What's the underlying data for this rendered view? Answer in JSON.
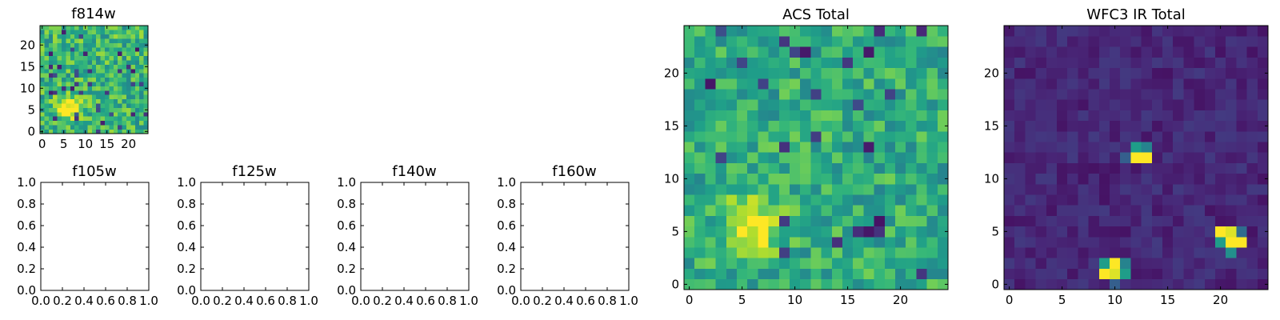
{
  "chart_data": [
    {
      "type": "heatmap",
      "title": "f814w",
      "colormap": "viridis",
      "xlim": [
        -0.5,
        24.5
      ],
      "ylim": [
        -0.5,
        24.5
      ],
      "xticks": [
        0,
        5,
        10,
        15,
        20
      ],
      "yticks": [
        0,
        5,
        10,
        15,
        20
      ],
      "grid": "off",
      "description_of_values": "25x25 noisy image, mostly mid/high (green) values with a bright compact source near x=5-8, y=4-8"
    },
    {
      "type": "heatmap",
      "title": "f105w",
      "empty": true,
      "xlim": [
        0,
        1
      ],
      "ylim": [
        0,
        1
      ],
      "xticks": [
        "0.0",
        "0.2",
        "0.4",
        "0.6",
        "0.8",
        "1.0"
      ],
      "yticks": [
        "0.0",
        "0.2",
        "0.4",
        "0.6",
        "0.8",
        "1.0"
      ]
    },
    {
      "type": "heatmap",
      "title": "f125w",
      "empty": true,
      "xlim": [
        0,
        1
      ],
      "ylim": [
        0,
        1
      ],
      "xticks": [
        "0.0",
        "0.2",
        "0.4",
        "0.6",
        "0.8",
        "1.0"
      ],
      "yticks": [
        "0.0",
        "0.2",
        "0.4",
        "0.6",
        "0.8",
        "1.0"
      ]
    },
    {
      "type": "heatmap",
      "title": "f140w",
      "empty": true,
      "xlim": [
        0,
        1
      ],
      "ylim": [
        0,
        1
      ],
      "xticks": [
        "0.0",
        "0.2",
        "0.4",
        "0.6",
        "0.8",
        "1.0"
      ],
      "yticks": [
        "0.0",
        "0.2",
        "0.4",
        "0.6",
        "0.8",
        "1.0"
      ]
    },
    {
      "type": "heatmap",
      "title": "f160w",
      "empty": true,
      "xlim": [
        0,
        1
      ],
      "ylim": [
        0,
        1
      ],
      "xticks": [
        "0.0",
        "0.2",
        "0.4",
        "0.6",
        "0.8",
        "1.0"
      ],
      "yticks": [
        "0.0",
        "0.2",
        "0.4",
        "0.6",
        "0.8",
        "1.0"
      ]
    },
    {
      "type": "heatmap",
      "title": "ACS Total",
      "colormap": "viridis",
      "xlim": [
        -0.5,
        24.5
      ],
      "ylim": [
        -0.5,
        24.5
      ],
      "xticks": [
        0,
        5,
        10,
        15,
        20
      ],
      "yticks": [
        0,
        5,
        10,
        15,
        20
      ],
      "grid": "off",
      "description_of_values": "25x25 image, mostly green/teal noise, bright yellow source around x=4-8, y=3-8, scattered dark pixels"
    },
    {
      "type": "heatmap",
      "title": "WFC3 IR Total",
      "colormap": "viridis",
      "xlim": [
        -0.5,
        24.5
      ],
      "ylim": [
        -0.5,
        24.5
      ],
      "xticks": [
        0,
        5,
        10,
        15,
        20
      ],
      "yticks": [
        0,
        5,
        10,
        15,
        20
      ],
      "grid": "off",
      "description_of_values": "25x25 image, dark purple background with three bright compact sources near (12.5,12.5), (20.5,4.5), (9.5,1.5)"
    }
  ]
}
